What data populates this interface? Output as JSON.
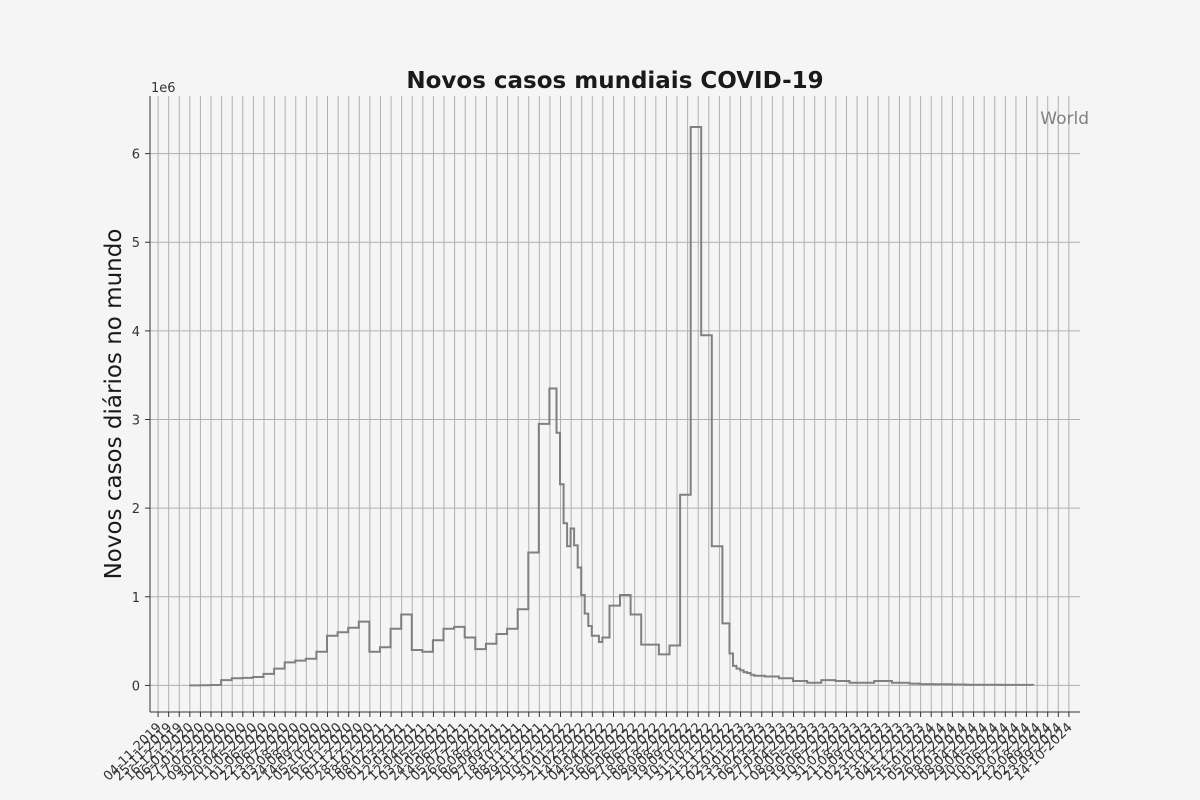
{
  "chart_data": {
    "type": "line",
    "title": "Novos casos mundiais COVID-19",
    "xlabel": "",
    "ylabel": "Novos casos diários no mundo",
    "y_multiplier_label": "1e6",
    "ylim": [
      -300000,
      6650000
    ],
    "yticks": [
      0,
      1000000,
      2000000,
      3000000,
      4000000,
      5000000,
      6000000
    ],
    "ytick_labels": [
      "0",
      "1",
      "2",
      "3",
      "4",
      "5",
      "6"
    ],
    "x_tick_start": "2019-11-04",
    "x_tick_end": "2024-10-14",
    "x_tick_step_days": 21,
    "x_tick_label_format": "DD-MM-YYYY",
    "x_range": [
      "2019-10-19",
      "2024-11-05"
    ],
    "grid": true,
    "legend_position": "top-right",
    "line_color": "#808080",
    "series": [
      {
        "name": "World",
        "x": [
          "2020-01-05",
          "2020-01-26",
          "2020-02-16",
          "2020-03-08",
          "2020-03-29",
          "2020-04-19",
          "2020-05-10",
          "2020-05-31",
          "2020-06-21",
          "2020-07-12",
          "2020-08-02",
          "2020-08-23",
          "2020-09-13",
          "2020-10-04",
          "2020-10-25",
          "2020-11-15",
          "2020-12-06",
          "2020-12-27",
          "2021-01-17",
          "2021-02-07",
          "2021-02-28",
          "2021-03-21",
          "2021-04-11",
          "2021-05-02",
          "2021-05-23",
          "2021-06-13",
          "2021-07-04",
          "2021-07-25",
          "2021-08-15",
          "2021-09-05",
          "2021-09-26",
          "2021-10-17",
          "2021-11-07",
          "2021-11-28",
          "2021-12-19",
          "2021-12-26",
          "2022-01-02",
          "2022-01-09",
          "2022-01-16",
          "2022-01-23",
          "2022-01-30",
          "2022-02-06",
          "2022-02-13",
          "2022-02-20",
          "2022-02-27",
          "2022-03-06",
          "2022-03-13",
          "2022-03-20",
          "2022-03-27",
          "2022-04-03",
          "2022-04-17",
          "2022-05-08",
          "2022-05-29",
          "2022-06-19",
          "2022-07-10",
          "2022-07-24",
          "2022-08-14",
          "2022-09-04",
          "2022-09-25",
          "2022-10-16",
          "2022-11-06",
          "2022-11-27",
          "2022-12-11",
          "2022-12-18",
          "2022-12-25",
          "2023-01-01",
          "2023-01-08",
          "2023-01-15",
          "2023-01-22",
          "2023-01-29",
          "2023-02-19",
          "2023-03-19",
          "2023-04-16",
          "2023-05-14",
          "2023-06-11",
          "2023-07-09",
          "2023-08-06",
          "2023-08-13",
          "2023-08-20",
          "2023-09-03",
          "2023-09-24",
          "2023-10-29",
          "2023-12-03",
          "2023-12-24",
          "2024-01-21",
          "2024-02-25",
          "2024-03-24",
          "2024-04-28",
          "2024-06-02",
          "2024-07-07",
          "2024-08-04"
        ],
        "y": [
          0,
          2000,
          5000,
          60000,
          80000,
          85000,
          95000,
          130000,
          190000,
          260000,
          280000,
          300000,
          380000,
          560000,
          600000,
          650000,
          720000,
          380000,
          430000,
          640000,
          800000,
          400000,
          380000,
          510000,
          640000,
          660000,
          540000,
          410000,
          470000,
          580000,
          640000,
          860000,
          1500000,
          2950000,
          3350000,
          3350000,
          2850000,
          2270000,
          1830000,
          1570000,
          1770000,
          1580000,
          1330000,
          1020000,
          810000,
          670000,
          560000,
          560000,
          490000,
          540000,
          900000,
          1020000,
          800000,
          460000,
          460000,
          350000,
          450000,
          2150000,
          6300000,
          3950000,
          1570000,
          700000,
          360000,
          220000,
          190000,
          170000,
          150000,
          140000,
          120000,
          110000,
          100000,
          80000,
          50000,
          30000,
          60000,
          50000,
          30000,
          30000,
          30000,
          30000,
          50000,
          30000,
          20000,
          15000,
          12000,
          10000,
          8000,
          7000,
          6000,
          6000,
          5000
        ]
      }
    ]
  }
}
